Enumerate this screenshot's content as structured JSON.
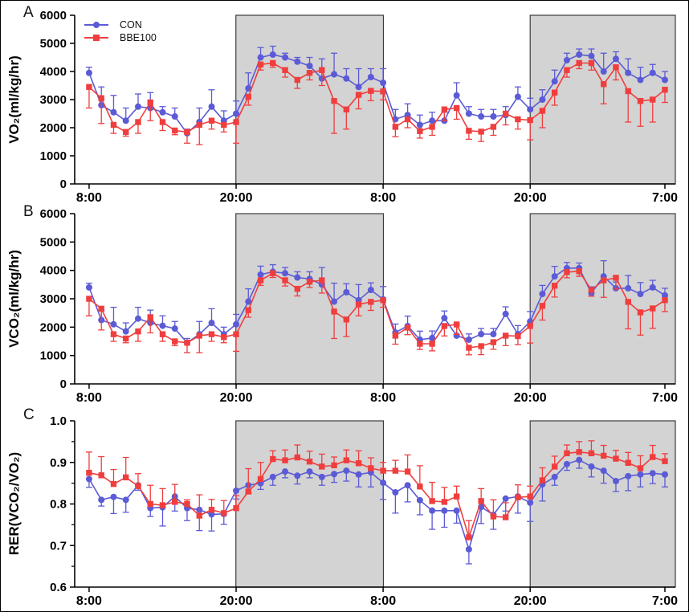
{
  "colors": {
    "con": "#5b5bd6",
    "bbe100": "#f03e3e",
    "shade": "#d3d3d3",
    "shade_border": "#3c3c3c",
    "axis": "#000000"
  },
  "chart_data": [
    {
      "type": "line",
      "panel_letter": "A",
      "ylabel": "VO₂(ml/kg/hr)",
      "xlabel": "",
      "ylim": [
        0,
        6000
      ],
      "grid": false,
      "legend_position": "top-left-inside",
      "x_unit": "clock time, hourly points from 8:00 to 7:00 (47 h)",
      "yticks": [
        {
          "v": 0,
          "label": "0"
        },
        {
          "v": 1000,
          "label": "1000"
        },
        {
          "v": 2000,
          "label": "2000"
        },
        {
          "v": 3000,
          "label": "3000"
        },
        {
          "v": 4000,
          "label": "4000"
        },
        {
          "v": 5000,
          "label": "5000"
        },
        {
          "v": 6000,
          "label": "6000"
        }
      ],
      "xticks": [
        {
          "label": "8:00",
          "t": 0
        },
        {
          "label": "20:00",
          "t": 12
        },
        {
          "label": "8:00",
          "t": 24
        },
        {
          "label": "20:00",
          "t": 36
        },
        {
          "label": "7:00",
          "t": 47
        }
      ],
      "shade_x_frac": [
        [
          0.2684,
          0.514
        ],
        [
          0.7583,
          1.0
        ]
      ],
      "series": [
        {
          "name": "CON",
          "color": "#5b5bd6",
          "marker": "circle",
          "error_direction": "up",
          "values": [
            3950,
            2800,
            2550,
            2250,
            2750,
            2700,
            2550,
            2400,
            1800,
            2200,
            2750,
            2250,
            2500,
            3400,
            4500,
            4600,
            4500,
            4350,
            4200,
            3750,
            3900,
            3750,
            3450,
            3800,
            3600,
            2300,
            2450,
            2100,
            2250,
            2250,
            3150,
            2500,
            2400,
            2400,
            2450,
            3100,
            2650,
            3000,
            3650,
            4400,
            4600,
            4550,
            4000,
            4450,
            3950,
            3700,
            3950,
            3700
          ],
          "errors": [
            200,
            650,
            600,
            450,
            450,
            550,
            200,
            300,
            150,
            500,
            600,
            350,
            450,
            550,
            350,
            300,
            150,
            150,
            300,
            700,
            750,
            350,
            650,
            300,
            500,
            350,
            400,
            350,
            300,
            300,
            450,
            250,
            250,
            250,
            300,
            350,
            400,
            350,
            400,
            250,
            200,
            250,
            650,
            250,
            500,
            450,
            300,
            300
          ]
        },
        {
          "name": "BBE100",
          "color": "#f03e3e",
          "marker": "square",
          "error_direction": "down",
          "values": [
            3450,
            3050,
            2100,
            1850,
            2200,
            2900,
            2200,
            1900,
            1850,
            2100,
            2250,
            2100,
            2200,
            3100,
            4250,
            4300,
            4050,
            3700,
            3950,
            4050,
            2950,
            2650,
            3170,
            3310,
            3290,
            2030,
            2300,
            1880,
            2030,
            2650,
            2700,
            1890,
            1860,
            2030,
            2500,
            2300,
            2270,
            2600,
            3250,
            4050,
            4300,
            4300,
            3550,
            4150,
            3300,
            2950,
            3000,
            3350
          ],
          "errors": [
            750,
            900,
            300,
            150,
            400,
            650,
            300,
            150,
            400,
            700,
            300,
            250,
            750,
            300,
            200,
            150,
            250,
            300,
            250,
            550,
            1150,
            700,
            500,
            350,
            300,
            350,
            300,
            250,
            300,
            400,
            400,
            300,
            350,
            300,
            400,
            350,
            700,
            600,
            450,
            250,
            200,
            250,
            700,
            450,
            1100,
            900,
            800,
            450
          ]
        }
      ]
    },
    {
      "type": "line",
      "panel_letter": "B",
      "ylabel": "VCO₂(ml/kg/hr)",
      "xlabel": "",
      "ylim": [
        0,
        6000
      ],
      "grid": false,
      "legend_position": "none",
      "x_unit": "clock time, hourly points from 8:00 to 7:00 (47 h)",
      "yticks": [
        {
          "v": 0,
          "label": "0"
        },
        {
          "v": 1000,
          "label": "1000"
        },
        {
          "v": 2000,
          "label": "2000"
        },
        {
          "v": 3000,
          "label": "3000"
        },
        {
          "v": 4000,
          "label": "4000"
        },
        {
          "v": 5000,
          "label": "5000"
        },
        {
          "v": 6000,
          "label": "6000"
        }
      ],
      "xticks": [
        {
          "label": "8:00",
          "t": 0
        },
        {
          "label": "20:00",
          "t": 12
        },
        {
          "label": "8:00",
          "t": 24
        },
        {
          "label": "20:00",
          "t": 36
        },
        {
          "label": "7:00",
          "t": 47
        }
      ],
      "shade_x_frac": [
        [
          0.2684,
          0.514
        ],
        [
          0.7583,
          1.0
        ]
      ],
      "series": [
        {
          "name": "CON",
          "color": "#5b5bd6",
          "marker": "circle",
          "error_direction": "up",
          "values": [
            3400,
            2250,
            2100,
            1850,
            2300,
            2150,
            2050,
            1950,
            1450,
            1750,
            2150,
            1750,
            2100,
            2900,
            3850,
            3950,
            3900,
            3750,
            3700,
            3500,
            2900,
            3230,
            2950,
            3310,
            2980,
            1810,
            2040,
            1560,
            1615,
            2320,
            1700,
            1560,
            1755,
            1755,
            2465,
            1755,
            2200,
            3170,
            3790,
            4080,
            4080,
            3200,
            3790,
            3370,
            3370,
            3170,
            3400,
            3120
          ],
          "errors": [
            150,
            350,
            600,
            300,
            400,
            450,
            350,
            250,
            150,
            450,
            500,
            250,
            350,
            450,
            300,
            250,
            200,
            200,
            250,
            600,
            650,
            300,
            550,
            250,
            450,
            300,
            350,
            300,
            250,
            250,
            400,
            200,
            200,
            200,
            250,
            300,
            350,
            300,
            350,
            200,
            180,
            220,
            550,
            220,
            450,
            400,
            250,
            250
          ]
        },
        {
          "name": "BBE100",
          "color": "#f03e3e",
          "marker": "square",
          "error_direction": "down",
          "values": [
            3000,
            2650,
            1750,
            1600,
            1850,
            2350,
            1750,
            1500,
            1450,
            1700,
            1750,
            1650,
            1750,
            2600,
            3650,
            3900,
            3650,
            3350,
            3600,
            3650,
            2550,
            2270,
            2800,
            2890,
            2950,
            1700,
            1985,
            1415,
            1415,
            2040,
            2095,
            1275,
            1330,
            1470,
            1700,
            1685,
            2040,
            2750,
            3460,
            3940,
            3970,
            3310,
            3650,
            3740,
            2890,
            2520,
            2660,
            2950
          ],
          "errors": [
            600,
            750,
            250,
            150,
            350,
            550,
            250,
            150,
            350,
            600,
            250,
            200,
            600,
            250,
            180,
            150,
            200,
            250,
            200,
            450,
            950,
            600,
            400,
            300,
            250,
            300,
            250,
            200,
            250,
            350,
            350,
            250,
            300,
            250,
            350,
            300,
            600,
            500,
            400,
            200,
            180,
            220,
            600,
            400,
            950,
            800,
            700,
            400
          ]
        }
      ]
    },
    {
      "type": "line",
      "panel_letter": "C",
      "ylabel": "RER(VCO₂/VO₂)",
      "xlabel": "",
      "ylim": [
        0.6,
        1.0
      ],
      "grid": false,
      "legend_position": "none",
      "x_unit": "clock time, hourly points from 8:00 to 7:00 (47 h)",
      "yticks": [
        {
          "v": 0.6,
          "label": "0.6"
        },
        {
          "v": 0.7,
          "label": "0.7"
        },
        {
          "v": 0.8,
          "label": "0.8"
        },
        {
          "v": 0.9,
          "label": "0.9"
        },
        {
          "v": 1.0,
          "label": "1.0"
        }
      ],
      "yticks_minor": [
        0.65,
        0.75,
        0.85,
        0.95
      ],
      "xticks": [
        {
          "label": "8:00",
          "t": 0
        },
        {
          "label": "20:00",
          "t": 12
        },
        {
          "label": "8:00",
          "t": 24
        },
        {
          "label": "20:00",
          "t": 36
        },
        {
          "label": "7:00",
          "t": 47
        }
      ],
      "shade_x_frac": [
        [
          0.2684,
          0.514
        ],
        [
          0.7583,
          1.0
        ]
      ],
      "series": [
        {
          "name": "CON",
          "color": "#5b5bd6",
          "marker": "circle",
          "error_direction": "down",
          "values": [
            0.86,
            0.81,
            0.817,
            0.81,
            0.845,
            0.79,
            0.792,
            0.818,
            0.79,
            0.786,
            0.775,
            0.776,
            0.832,
            0.845,
            0.85,
            0.865,
            0.878,
            0.868,
            0.878,
            0.865,
            0.872,
            0.88,
            0.871,
            0.876,
            0.851,
            0.828,
            0.845,
            0.809,
            0.784,
            0.784,
            0.784,
            0.691,
            0.793,
            0.774,
            0.813,
            0.818,
            0.803,
            0.847,
            0.865,
            0.896,
            0.906,
            0.89,
            0.88,
            0.855,
            0.867,
            0.871,
            0.874,
            0.871
          ],
          "errors": [
            0.02,
            0.015,
            0.04,
            0.03,
            0.012,
            0.02,
            0.045,
            0.035,
            0.03,
            0.05,
            0.04,
            0.025,
            0.02,
            0.02,
            0.015,
            0.02,
            0.015,
            0.02,
            0.015,
            0.02,
            0.02,
            0.025,
            0.03,
            0.035,
            0.04,
            0.05,
            0.04,
            0.035,
            0.045,
            0.04,
            0.03,
            0.035,
            0.04,
            0.035,
            0.03,
            0.04,
            0.045,
            0.04,
            0.02,
            0.015,
            0.02,
            0.025,
            0.03,
            0.025,
            0.035,
            0.03,
            0.025,
            0.03
          ]
        },
        {
          "name": "BBE100",
          "color": "#f03e3e",
          "marker": "square",
          "error_direction": "up",
          "values": [
            0.875,
            0.869,
            0.848,
            0.864,
            0.843,
            0.8,
            0.797,
            0.805,
            0.8,
            0.772,
            0.786,
            0.778,
            0.79,
            0.83,
            0.86,
            0.908,
            0.905,
            0.912,
            0.902,
            0.89,
            0.893,
            0.905,
            0.898,
            0.886,
            0.88,
            0.88,
            0.878,
            0.842,
            0.807,
            0.805,
            0.818,
            0.72,
            0.807,
            0.77,
            0.768,
            0.816,
            0.818,
            0.857,
            0.89,
            0.922,
            0.925,
            0.922,
            0.916,
            0.909,
            0.899,
            0.886,
            0.913,
            0.903
          ],
          "errors": [
            0.05,
            0.045,
            0.035,
            0.048,
            0.03,
            0.045,
            0.04,
            0.042,
            0.01,
            0.05,
            0.025,
            0.03,
            0.03,
            0.055,
            0.04,
            0.02,
            0.025,
            0.03,
            0.025,
            0.03,
            0.02,
            0.025,
            0.03,
            0.025,
            0.02,
            0.025,
            0.04,
            0.05,
            0.045,
            0.035,
            0.025,
            0.04,
            0.03,
            0.04,
            0.035,
            0.03,
            0.025,
            0.03,
            0.025,
            0.02,
            0.025,
            0.03,
            0.025,
            0.02,
            0.025,
            0.03,
            0.028,
            0.018
          ]
        }
      ]
    }
  ]
}
